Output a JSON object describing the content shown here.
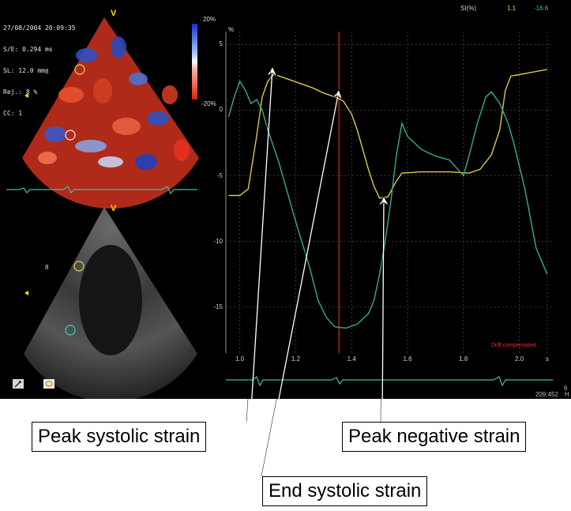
{
  "echo": {
    "header_lines": [
      "27/08/2004 20:09:35",
      "S/E: 0.294 ms",
      "SL: 12.0 mm",
      "Rej.: 8 %",
      "CC: 1"
    ],
    "view_marker": "V",
    "scale_top": "20%",
    "scale_bottom": "-20%",
    "depth_marker": "8"
  },
  "header": {
    "title": "SI(%)",
    "value_1": "1.1",
    "value_2": "-16.6"
  },
  "chart_data": {
    "type": "line",
    "ylabel": "%",
    "ylim": [
      -18.5,
      5.5
    ],
    "xlim": [
      0.95,
      2.12
    ],
    "yticks": [
      "5",
      "0",
      "-5",
      "-10",
      "-15"
    ],
    "ytick_values": [
      5,
      0,
      -5,
      -10,
      -15
    ],
    "xticks": [
      "1.0",
      "1.2",
      "1.4",
      "1.6",
      "1.8",
      "2.0",
      "s"
    ],
    "xtick_values": [
      1.0,
      1.2,
      1.4,
      1.6,
      1.8,
      2.0,
      2.1
    ],
    "series": [
      {
        "color": "#d8c94a",
        "points": [
          [
            0.96,
            -6.5
          ],
          [
            1.0,
            -6.5
          ],
          [
            1.03,
            -6.0
          ],
          [
            1.06,
            -2.0
          ],
          [
            1.08,
            1.0
          ],
          [
            1.1,
            2.2
          ],
          [
            1.12,
            2.7
          ],
          [
            1.14,
            2.6
          ],
          [
            1.18,
            2.3
          ],
          [
            1.22,
            2.0
          ],
          [
            1.26,
            1.7
          ],
          [
            1.3,
            1.3
          ],
          [
            1.34,
            1.0
          ],
          [
            1.37,
            0.7
          ],
          [
            1.4,
            -0.3
          ],
          [
            1.42,
            -1.5
          ],
          [
            1.44,
            -3.0
          ],
          [
            1.46,
            -4.5
          ],
          [
            1.48,
            -5.8
          ],
          [
            1.5,
            -6.7
          ],
          [
            1.53,
            -6.6
          ],
          [
            1.56,
            -5.4
          ],
          [
            1.58,
            -4.8
          ],
          [
            1.65,
            -4.7
          ],
          [
            1.75,
            -4.7
          ],
          [
            1.82,
            -4.8
          ],
          [
            1.86,
            -4.5
          ],
          [
            1.9,
            -3.4
          ],
          [
            1.93,
            -1.5
          ],
          [
            1.95,
            1.5
          ],
          [
            1.97,
            2.6
          ],
          [
            2.0,
            2.7
          ],
          [
            2.05,
            2.9
          ],
          [
            2.1,
            3.1
          ]
        ]
      },
      {
        "color": "#3aaa8c",
        "points": [
          [
            0.96,
            -0.5
          ],
          [
            0.98,
            1.0
          ],
          [
            1.0,
            2.2
          ],
          [
            1.02,
            1.5
          ],
          [
            1.04,
            0.5
          ],
          [
            1.06,
            0.8
          ],
          [
            1.08,
            0.0
          ],
          [
            1.1,
            -1.5
          ],
          [
            1.14,
            -4.0
          ],
          [
            1.2,
            -8.5
          ],
          [
            1.25,
            -12.0
          ],
          [
            1.28,
            -14.5
          ],
          [
            1.31,
            -15.8
          ],
          [
            1.34,
            -16.5
          ],
          [
            1.38,
            -16.6
          ],
          [
            1.42,
            -16.3
          ],
          [
            1.46,
            -15.5
          ],
          [
            1.48,
            -14.5
          ],
          [
            1.5,
            -12.5
          ],
          [
            1.52,
            -10.0
          ],
          [
            1.54,
            -7.0
          ],
          [
            1.56,
            -3.5
          ],
          [
            1.58,
            -1.0
          ],
          [
            1.6,
            -2.0
          ],
          [
            1.65,
            -3.0
          ],
          [
            1.7,
            -3.5
          ],
          [
            1.75,
            -3.8
          ],
          [
            1.78,
            -4.5
          ],
          [
            1.8,
            -5.0
          ],
          [
            1.82,
            -3.5
          ],
          [
            1.85,
            -1.0
          ],
          [
            1.88,
            1.0
          ],
          [
            1.9,
            1.4
          ],
          [
            1.93,
            0.5
          ],
          [
            1.96,
            -1.0
          ],
          [
            1.98,
            -2.5
          ],
          [
            2.02,
            -6.0
          ],
          [
            2.06,
            -10.5
          ],
          [
            2.1,
            -12.5
          ]
        ]
      }
    ],
    "time_marker_x": 1.355,
    "footer_note": "Drift compensated"
  },
  "annotations": {
    "peak_systolic": "Peak systolic strain",
    "end_systolic": "End systolic strain",
    "peak_negative": "Peak negative strain"
  },
  "footer": {
    "corner_1": "6",
    "corner_2": "209:452",
    "corner_3": "H"
  }
}
